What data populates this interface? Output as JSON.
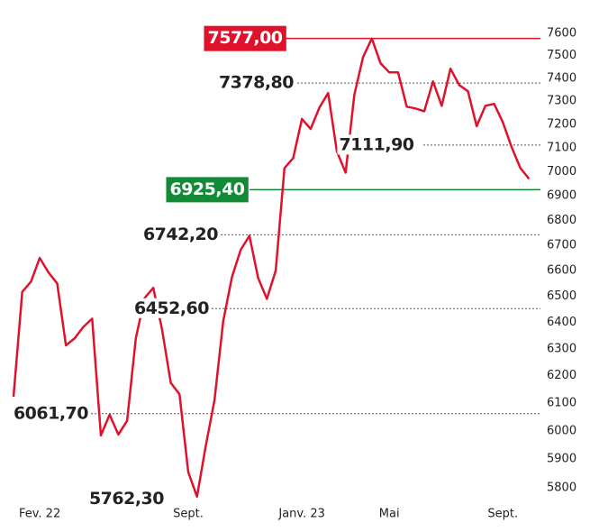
{
  "chart_data": {
    "type": "line",
    "categories": [
      null,
      null,
      null,
      "Fev. 22",
      null,
      null,
      null,
      null,
      null,
      null,
      null,
      null,
      null,
      null,
      null,
      null,
      null,
      null,
      null,
      null,
      "Sept.",
      null,
      null,
      null,
      null,
      null,
      null,
      null,
      null,
      null,
      null,
      null,
      null,
      "Janv. 23",
      null,
      null,
      null,
      null,
      null,
      null,
      null,
      null,
      null,
      "Mai",
      null,
      null,
      null,
      null,
      null,
      null,
      null,
      null,
      null,
      null,
      null,
      null,
      "Sept.",
      null,
      null,
      null
    ],
    "series": [
      {
        "color": "#e0112b",
        "values": [
          6123,
          6517,
          6557,
          6650,
          6593,
          6550,
          6313,
          6340,
          6383,
          6414,
          5984,
          6058,
          5987,
          6036,
          6340,
          6493,
          6533,
          6373,
          6174,
          6132,
          5855,
          5770,
          5946,
          6110,
          6404,
          6575,
          6682,
          6738,
          6571,
          6490,
          6600,
          7015,
          7057,
          7223,
          7180,
          7272,
          7335,
          7085,
          6996,
          7328,
          7494,
          7577,
          7466,
          7426,
          7426,
          7276,
          7268,
          7256,
          7386,
          7280,
          7442,
          7370,
          7343,
          7192,
          7280,
          7288,
          7208,
          7103,
          7015,
          6970
        ]
      }
    ],
    "ylim": [
      5720,
      7680
    ],
    "log_scale": true,
    "yticks": [
      5800,
      5900,
      6000,
      6100,
      6200,
      6300,
      6400,
      6500,
      6600,
      6700,
      6800,
      6900,
      7000,
      7100,
      7200,
      7300,
      7400,
      7500,
      7600
    ],
    "annotations": [
      {
        "label": "7577,00",
        "value": 7577.0,
        "style": "box",
        "color": "#e0112b"
      },
      {
        "label": "7378,80",
        "value": 7378.8,
        "style": "dotted"
      },
      {
        "label": "7111,90",
        "value": 7111.9,
        "style": "dotted"
      },
      {
        "label": "6925,40",
        "value": 6925.4,
        "style": "box",
        "color": "#138a36"
      },
      {
        "label": "6742,20",
        "value": 6742.2,
        "style": "dotted"
      },
      {
        "label": "6452,60",
        "value": 6452.6,
        "style": "dotted"
      },
      {
        "label": "6061,70",
        "value": 6061.7,
        "style": "dotted"
      },
      {
        "label": "5762,30",
        "value": 5762.3,
        "style": "plain"
      }
    ]
  }
}
